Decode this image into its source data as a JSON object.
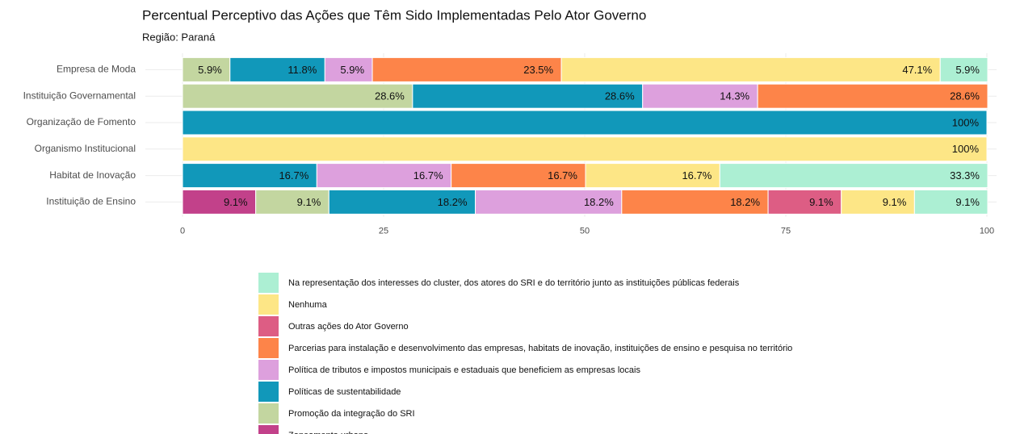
{
  "chart_data": {
    "type": "stacked-bar-horizontal",
    "title": "Percentual Perceptivo das Ações que Têm Sido Implementadas Pelo Ator Governo",
    "subtitle": "Região: Paraná",
    "categories": [
      "Empresa de Moda",
      "Instituição Governamental",
      "Organização de Fomento",
      "Organismo Institucional",
      "Habitat de Inovação",
      "Instituição de Ensino"
    ],
    "xlim": [
      0,
      100
    ],
    "xticks": [
      0,
      25,
      50,
      75,
      100
    ],
    "grid": true,
    "series": [
      {
        "name": "Zoneamento urbano",
        "color": "#c2418a",
        "values": [
          null,
          null,
          null,
          null,
          null,
          9.1
        ],
        "value_labels": [
          null,
          null,
          null,
          null,
          null,
          "9.1%"
        ]
      },
      {
        "name": "Promoção da integração do SRI",
        "color": "#c3d6a0",
        "values": [
          5.9,
          28.6,
          null,
          null,
          null,
          9.1
        ],
        "value_labels": [
          "5.9%",
          "28.6%",
          null,
          null,
          null,
          "9.1%"
        ]
      },
      {
        "name": "Políticas de sustentabilidade",
        "color": "#1198ba",
        "values": [
          11.8,
          28.6,
          100,
          null,
          16.7,
          18.2
        ],
        "value_labels": [
          "11.8%",
          "28.6%",
          "100%",
          null,
          "16.7%",
          "18.2%"
        ]
      },
      {
        "name": "Política de tributos e impostos municipais e estaduais que beneficiem as empresas locais",
        "color": "#dda0dd",
        "values": [
          5.9,
          14.3,
          null,
          null,
          16.7,
          18.2
        ],
        "value_labels": [
          "5.9%",
          "14.3%",
          null,
          null,
          "16.7%",
          "18.2%"
        ]
      },
      {
        "name": "Parcerias para instalação e desenvolvimento das empresas, habitats de inovação, instituições de ensino e pesquisa no território",
        "color": "#fd8449",
        "values": [
          23.5,
          28.6,
          null,
          null,
          16.7,
          18.2
        ],
        "value_labels": [
          "23.5%",
          "28.6%",
          null,
          null,
          "16.7%",
          "18.2%"
        ]
      },
      {
        "name": "Outras ações do Ator Governo",
        "color": "#dd5d84",
        "values": [
          null,
          null,
          null,
          null,
          null,
          9.1
        ],
        "value_labels": [
          null,
          null,
          null,
          null,
          null,
          "9.1%"
        ]
      },
      {
        "name": "Nenhuma",
        "color": "#fde686",
        "values": [
          47.1,
          null,
          null,
          100,
          16.7,
          9.1
        ],
        "value_labels": [
          "47.1%",
          null,
          null,
          "100%",
          "16.7%",
          "9.1%"
        ]
      },
      {
        "name": "Na representação dos interesses do cluster, dos atores do SRI e do território junto as instituições públicas federais",
        "color": "#acefd3",
        "values": [
          5.9,
          null,
          null,
          null,
          33.3,
          9.1
        ],
        "value_labels": [
          "5.9%",
          null,
          null,
          null,
          "33.3%",
          "9.1%"
        ]
      }
    ]
  }
}
